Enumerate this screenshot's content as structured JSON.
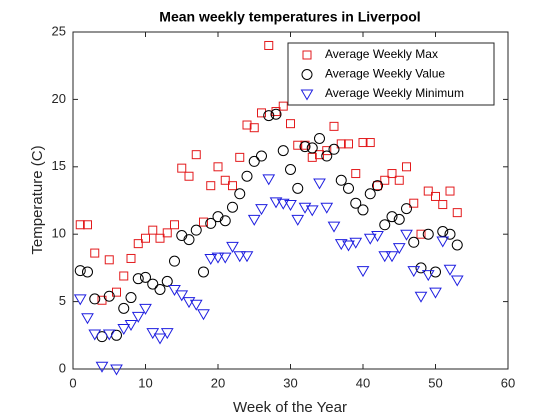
{
  "chart_data": {
    "type": "scatter",
    "title": "Mean weekly temperatures in Liverpool",
    "x_label": "Week of the Year",
    "y_label": "Temperature (C)",
    "x": [
      1,
      2,
      3,
      4,
      5,
      6,
      7,
      8,
      9,
      10,
      11,
      12,
      13,
      14,
      15,
      16,
      17,
      18,
      19,
      20,
      21,
      22,
      23,
      24,
      25,
      26,
      27,
      28,
      29,
      30,
      31,
      32,
      33,
      34,
      35,
      36,
      37,
      38,
      39,
      40,
      41,
      42,
      43,
      44,
      45,
      46,
      47,
      48,
      49,
      50,
      51,
      52,
      53
    ],
    "series": [
      {
        "name": "Average Weekly Max",
        "color": "#e31a1c",
        "marker": "square",
        "values": [
          10.7,
          10.7,
          8.6,
          5.1,
          8.1,
          5.7,
          6.9,
          8.2,
          9.3,
          9.7,
          10.3,
          9.7,
          10.1,
          10.7,
          14.9,
          14.3,
          15.9,
          10.9,
          13.6,
          15.0,
          14.0,
          13.6,
          15.7,
          18.1,
          17.9,
          19.0,
          24.0,
          19.1,
          19.5,
          18.2,
          16.6,
          16.6,
          15.7,
          15.9,
          16.2,
          18.0,
          16.7,
          16.7,
          14.5,
          16.8,
          16.8,
          13.6,
          14.0,
          14.5,
          14.0,
          15.0,
          12.3,
          10.0,
          13.2,
          12.8,
          12.2,
          13.2,
          11.6
        ]
      },
      {
        "name": "Average Weekly Value",
        "color": "#000000",
        "marker": "circle",
        "values": [
          7.3,
          7.2,
          5.2,
          2.4,
          5.4,
          2.5,
          4.5,
          5.3,
          6.7,
          6.8,
          6.3,
          5.9,
          6.5,
          8.0,
          9.9,
          9.6,
          10.3,
          7.2,
          10.8,
          11.3,
          11.0,
          12.0,
          13.0,
          14.3,
          15.4,
          15.8,
          18.8,
          18.9,
          16.2,
          14.8,
          13.4,
          16.5,
          16.4,
          17.1,
          15.8,
          16.3,
          14.0,
          13.4,
          12.3,
          11.8,
          13.0,
          13.6,
          10.7,
          11.3,
          11.1,
          11.9,
          9.4,
          7.5,
          10.0,
          7.2,
          10.2,
          10.0,
          9.2
        ]
      },
      {
        "name": "Average Weekly Minimum",
        "color": "#1f1fe0",
        "marker": "triangle-down",
        "values": [
          5.2,
          3.8,
          2.6,
          0.2,
          2.6,
          0.0,
          3.0,
          3.3,
          3.9,
          4.5,
          2.7,
          2.3,
          2.7,
          5.9,
          5.5,
          5.0,
          4.8,
          4.1,
          8.2,
          8.3,
          8.3,
          9.1,
          8.4,
          8.4,
          11.1,
          11.9,
          14.1,
          12.4,
          12.3,
          12.2,
          11.1,
          12.0,
          11.8,
          13.8,
          12.0,
          10.6,
          9.3,
          9.2,
          9.4,
          7.3,
          9.7,
          9.9,
          8.4,
          8.4,
          9.0,
          10.0,
          7.3,
          5.4,
          7.0,
          5.7,
          9.5,
          7.4,
          6.6
        ]
      }
    ],
    "xlim": [
      0,
      60
    ],
    "xticks": [
      0,
      10,
      20,
      30,
      40,
      50,
      60
    ],
    "ylim": [
      0,
      25
    ],
    "yticks": [
      0,
      5,
      10,
      15,
      20,
      25
    ],
    "legend": "northeast"
  }
}
